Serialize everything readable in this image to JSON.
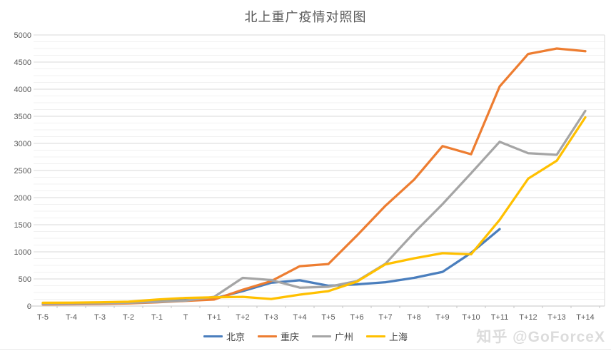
{
  "watermark": {
    "text": "知乎 @GoForceX"
  },
  "chart_data": {
    "type": "line",
    "title": "北上重广疫情对照图",
    "categories": [
      "T-5",
      "T-4",
      "T-3",
      "T-2",
      "T-1",
      "T",
      "T+1",
      "T+2",
      "T+3",
      "T+4",
      "T+5",
      "T+6",
      "T+7",
      "T+8",
      "T+9",
      "T+10",
      "T+11",
      "T+12",
      "T+13",
      "T+14"
    ],
    "series": [
      {
        "name": "北京",
        "color": "#4A7EBD",
        "values": [
          45,
          48,
          55,
          65,
          90,
          110,
          140,
          275,
          430,
          475,
          375,
          400,
          440,
          520,
          630,
          980,
          1420,
          null,
          null,
          null
        ]
      },
      {
        "name": "重庆",
        "color": "#ED7D31",
        "values": [
          30,
          33,
          38,
          50,
          70,
          95,
          120,
          300,
          460,
          735,
          775,
          1300,
          1850,
          2330,
          2950,
          2800,
          4050,
          4650,
          4750,
          4700
        ]
      },
      {
        "name": "广州",
        "color": "#A5A5A5",
        "values": [
          40,
          44,
          50,
          60,
          75,
          100,
          170,
          520,
          480,
          340,
          355,
          460,
          780,
          1350,
          1880,
          2450,
          3030,
          2820,
          2790,
          3600
        ]
      },
      {
        "name": "上海",
        "color": "#FFC000",
        "values": [
          60,
          63,
          68,
          80,
          120,
          150,
          160,
          170,
          130,
          210,
          275,
          450,
          770,
          880,
          975,
          955,
          1590,
          2350,
          2680,
          3480
        ]
      }
    ],
    "xlabel": "",
    "ylabel": "",
    "ylim": [
      0,
      5000
    ],
    "y_tick_interval": 500,
    "y_minor_interval": 125,
    "grid": true,
    "legend_position": "bottom"
  }
}
